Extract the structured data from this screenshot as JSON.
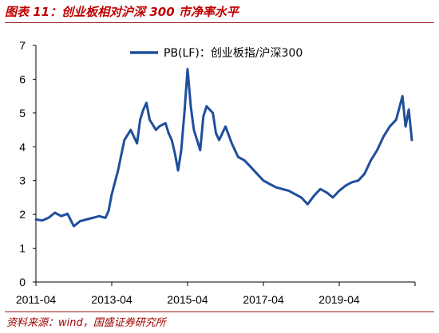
{
  "header": {
    "title": "图表 11：创业板相对沪深 300 市净率水平"
  },
  "footer": {
    "source": "资料来源：wind，国盛证券研究所"
  },
  "colors": {
    "line": "#1f4e9c",
    "accent": "#c00000"
  },
  "chart_data": {
    "type": "line",
    "title": "图表 11：创业板相对沪深 300 市净率水平",
    "xlabel": "",
    "ylabel": "",
    "x_ticks": [
      "2011-04",
      "2013-04",
      "2015-04",
      "2017-04",
      "2019-04"
    ],
    "x_range": [
      "2011-04",
      "2021-04"
    ],
    "y_ticks": [
      0,
      1,
      2,
      3,
      4,
      5,
      6,
      7
    ],
    "ylim": [
      0,
      7
    ],
    "grid": false,
    "legend": {
      "position": "top-right",
      "entries": [
        "PB(LF)：创业板指/沪深300"
      ]
    },
    "series": [
      {
        "name": "PB(LF)：创业板指/沪深300",
        "x": [
          "2011-04",
          "2011-06",
          "2011-08",
          "2011-10",
          "2011-12",
          "2012-02",
          "2012-04",
          "2012-06",
          "2012-08",
          "2012-10",
          "2012-12",
          "2013-02",
          "2013-03",
          "2013-04",
          "2013-06",
          "2013-08",
          "2013-10",
          "2013-12",
          "2014-01",
          "2014-02",
          "2014-03",
          "2014-04",
          "2014-06",
          "2014-07",
          "2014-09",
          "2014-10",
          "2014-11",
          "2014-12",
          "2015-01",
          "2015-02",
          "2015-03",
          "2015-04",
          "2015-05",
          "2015-06",
          "2015-07",
          "2015-08",
          "2015-09",
          "2015-10",
          "2015-12",
          "2016-01",
          "2016-02",
          "2016-04",
          "2016-06",
          "2016-08",
          "2016-10",
          "2016-12",
          "2017-02",
          "2017-04",
          "2017-06",
          "2017-08",
          "2017-10",
          "2017-12",
          "2018-02",
          "2018-04",
          "2018-06",
          "2018-08",
          "2018-10",
          "2018-12",
          "2019-02",
          "2019-04",
          "2019-06",
          "2019-08",
          "2019-10",
          "2019-12",
          "2020-02",
          "2020-04",
          "2020-06",
          "2020-08",
          "2020-10",
          "2020-12",
          "2021-01",
          "2021-02",
          "2021-03"
        ],
        "values": [
          1.85,
          1.82,
          1.9,
          2.05,
          1.95,
          2.02,
          1.65,
          1.8,
          1.85,
          1.9,
          1.95,
          1.9,
          2.1,
          2.6,
          3.3,
          4.2,
          4.5,
          4.1,
          4.8,
          5.1,
          5.3,
          4.8,
          4.5,
          4.6,
          4.7,
          4.4,
          4.2,
          3.8,
          3.3,
          3.9,
          5.0,
          6.3,
          5.2,
          4.5,
          4.2,
          3.9,
          4.9,
          5.2,
          5.0,
          4.4,
          4.2,
          4.6,
          4.1,
          3.7,
          3.6,
          3.4,
          3.2,
          3.0,
          2.9,
          2.8,
          2.75,
          2.7,
          2.6,
          2.5,
          2.3,
          2.55,
          2.75,
          2.65,
          2.5,
          2.7,
          2.85,
          2.95,
          3.0,
          3.2,
          3.6,
          3.9,
          4.3,
          4.6,
          4.8,
          5.5,
          4.6,
          5.1,
          4.2
        ]
      }
    ]
  }
}
